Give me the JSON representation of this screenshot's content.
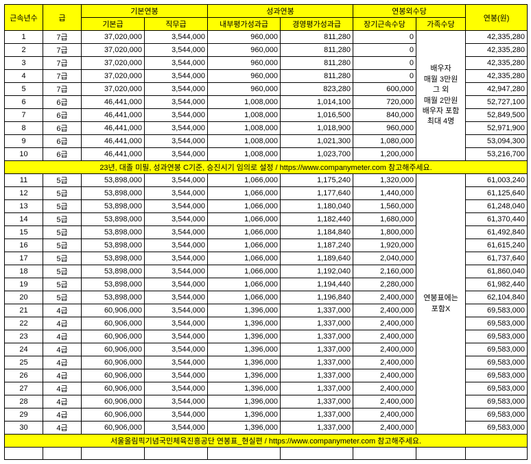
{
  "headers": {
    "seniority": "근속년수",
    "grade": "급",
    "base_salary": "기본연봉",
    "base_pay": "기본급",
    "job_pay": "직무급",
    "perf_salary": "성과연봉",
    "internal_perf": "내부평가성과급",
    "mgmt_perf": "경영평가성과급",
    "extra_allow": "연봉외수당",
    "long_service": "장기근속수당",
    "family_allow": "가족수당",
    "annual_won": "연봉(원)"
  },
  "family_note_lines": [
    "배우자",
    "매월 3만원",
    "그 외",
    "매월 2만원",
    "배우자 포함",
    "최대 4명"
  ],
  "family_note2_lines": [
    "연봉표에는",
    "포함X"
  ],
  "note1": "23년, 대졸 미필, 성과연봉 C기준, 승진시기 임의로 설정 / https://www.companymeter.com 참고해주세요.",
  "note2": "서울올림픽기념국민체육진흥공단 연봉표_현실편 / https://www.companymeter.com 참고해주세요.",
  "rows1": [
    {
      "n": "1",
      "g": "7급",
      "bp": "37,020,000",
      "jp": "3,544,000",
      "ip": "960,000",
      "mp": "811,280",
      "ls": "0",
      "tot": "42,335,280"
    },
    {
      "n": "2",
      "g": "7급",
      "bp": "37,020,000",
      "jp": "3,544,000",
      "ip": "960,000",
      "mp": "811,280",
      "ls": "0",
      "tot": "42,335,280"
    },
    {
      "n": "3",
      "g": "7급",
      "bp": "37,020,000",
      "jp": "3,544,000",
      "ip": "960,000",
      "mp": "811,280",
      "ls": "0",
      "tot": "42,335,280"
    },
    {
      "n": "4",
      "g": "7급",
      "bp": "37,020,000",
      "jp": "3,544,000",
      "ip": "960,000",
      "mp": "811,280",
      "ls": "0",
      "tot": "42,335,280"
    },
    {
      "n": "5",
      "g": "7급",
      "bp": "37,020,000",
      "jp": "3,544,000",
      "ip": "960,000",
      "mp": "823,280",
      "ls": "600,000",
      "tot": "42,947,280"
    },
    {
      "n": "6",
      "g": "6급",
      "bp": "46,441,000",
      "jp": "3,544,000",
      "ip": "1,008,000",
      "mp": "1,014,100",
      "ls": "720,000",
      "tot": "52,727,100"
    },
    {
      "n": "7",
      "g": "6급",
      "bp": "46,441,000",
      "jp": "3,544,000",
      "ip": "1,008,000",
      "mp": "1,016,500",
      "ls": "840,000",
      "tot": "52,849,500"
    },
    {
      "n": "8",
      "g": "6급",
      "bp": "46,441,000",
      "jp": "3,544,000",
      "ip": "1,008,000",
      "mp": "1,018,900",
      "ls": "960,000",
      "tot": "52,971,900"
    },
    {
      "n": "9",
      "g": "6급",
      "bp": "46,441,000",
      "jp": "3,544,000",
      "ip": "1,008,000",
      "mp": "1,021,300",
      "ls": "1,080,000",
      "tot": "53,094,300"
    },
    {
      "n": "10",
      "g": "6급",
      "bp": "46,441,000",
      "jp": "3,544,000",
      "ip": "1,008,000",
      "mp": "1,023,700",
      "ls": "1,200,000",
      "tot": "53,216,700"
    }
  ],
  "rows2": [
    {
      "n": "11",
      "g": "5급",
      "bp": "53,898,000",
      "jp": "3,544,000",
      "ip": "1,066,000",
      "mp": "1,175,240",
      "ls": "1,320,000",
      "tot": "61,003,240"
    },
    {
      "n": "12",
      "g": "5급",
      "bp": "53,898,000",
      "jp": "3,544,000",
      "ip": "1,066,000",
      "mp": "1,177,640",
      "ls": "1,440,000",
      "tot": "61,125,640"
    },
    {
      "n": "13",
      "g": "5급",
      "bp": "53,898,000",
      "jp": "3,544,000",
      "ip": "1,066,000",
      "mp": "1,180,040",
      "ls": "1,560,000",
      "tot": "61,248,040"
    },
    {
      "n": "14",
      "g": "5급",
      "bp": "53,898,000",
      "jp": "3,544,000",
      "ip": "1,066,000",
      "mp": "1,182,440",
      "ls": "1,680,000",
      "tot": "61,370,440"
    },
    {
      "n": "15",
      "g": "5급",
      "bp": "53,898,000",
      "jp": "3,544,000",
      "ip": "1,066,000",
      "mp": "1,184,840",
      "ls": "1,800,000",
      "tot": "61,492,840"
    },
    {
      "n": "16",
      "g": "5급",
      "bp": "53,898,000",
      "jp": "3,544,000",
      "ip": "1,066,000",
      "mp": "1,187,240",
      "ls": "1,920,000",
      "tot": "61,615,240"
    },
    {
      "n": "17",
      "g": "5급",
      "bp": "53,898,000",
      "jp": "3,544,000",
      "ip": "1,066,000",
      "mp": "1,189,640",
      "ls": "2,040,000",
      "tot": "61,737,640"
    },
    {
      "n": "18",
      "g": "5급",
      "bp": "53,898,000",
      "jp": "3,544,000",
      "ip": "1,066,000",
      "mp": "1,192,040",
      "ls": "2,160,000",
      "tot": "61,860,040"
    },
    {
      "n": "19",
      "g": "5급",
      "bp": "53,898,000",
      "jp": "3,544,000",
      "ip": "1,066,000",
      "mp": "1,194,440",
      "ls": "2,280,000",
      "tot": "61,982,440"
    },
    {
      "n": "20",
      "g": "5급",
      "bp": "53,898,000",
      "jp": "3,544,000",
      "ip": "1,066,000",
      "mp": "1,196,840",
      "ls": "2,400,000",
      "tot": "62,104,840"
    },
    {
      "n": "21",
      "g": "4급",
      "bp": "60,906,000",
      "jp": "3,544,000",
      "ip": "1,396,000",
      "mp": "1,337,000",
      "ls": "2,400,000",
      "tot": "69,583,000"
    },
    {
      "n": "22",
      "g": "4급",
      "bp": "60,906,000",
      "jp": "3,544,000",
      "ip": "1,396,000",
      "mp": "1,337,000",
      "ls": "2,400,000",
      "tot": "69,583,000"
    },
    {
      "n": "23",
      "g": "4급",
      "bp": "60,906,000",
      "jp": "3,544,000",
      "ip": "1,396,000",
      "mp": "1,337,000",
      "ls": "2,400,000",
      "tot": "69,583,000"
    },
    {
      "n": "24",
      "g": "4급",
      "bp": "60,906,000",
      "jp": "3,544,000",
      "ip": "1,396,000",
      "mp": "1,337,000",
      "ls": "2,400,000",
      "tot": "69,583,000"
    },
    {
      "n": "25",
      "g": "4급",
      "bp": "60,906,000",
      "jp": "3,544,000",
      "ip": "1,396,000",
      "mp": "1,337,000",
      "ls": "2,400,000",
      "tot": "69,583,000"
    },
    {
      "n": "26",
      "g": "4급",
      "bp": "60,906,000",
      "jp": "3,544,000",
      "ip": "1,396,000",
      "mp": "1,337,000",
      "ls": "2,400,000",
      "tot": "69,583,000"
    },
    {
      "n": "27",
      "g": "4급",
      "bp": "60,906,000",
      "jp": "3,544,000",
      "ip": "1,396,000",
      "mp": "1,337,000",
      "ls": "2,400,000",
      "tot": "69,583,000"
    },
    {
      "n": "28",
      "g": "4급",
      "bp": "60,906,000",
      "jp": "3,544,000",
      "ip": "1,396,000",
      "mp": "1,337,000",
      "ls": "2,400,000",
      "tot": "69,583,000"
    },
    {
      "n": "29",
      "g": "4급",
      "bp": "60,906,000",
      "jp": "3,544,000",
      "ip": "1,396,000",
      "mp": "1,337,000",
      "ls": "2,400,000",
      "tot": "69,583,000"
    },
    {
      "n": "30",
      "g": "4급",
      "bp": "60,906,000",
      "jp": "3,544,000",
      "ip": "1,396,000",
      "mp": "1,337,000",
      "ls": "2,400,000",
      "tot": "69,583,000"
    }
  ],
  "colors": {
    "header_bg": "#ffff00",
    "border": "#000000",
    "text": "#000000"
  }
}
